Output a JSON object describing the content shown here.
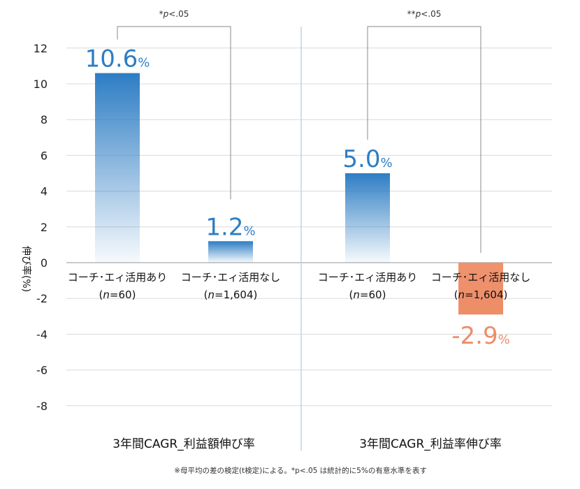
{
  "chart_data": {
    "type": "bar",
    "ylabel": "伸び率(%)",
    "ylim": [
      -9,
      13
    ],
    "yticks": [
      12,
      10,
      8,
      6,
      4,
      2,
      0,
      -2,
      -4,
      -6,
      -8
    ],
    "grid": true,
    "groups": [
      {
        "title": "3年間CAGR_利益額伸び率",
        "significance": "*p<.05",
        "significance_prefix": "*",
        "significance_p": "p",
        "significance_rest": "<.05",
        "bars": [
          {
            "label": "コーチ･エィ活用あり",
            "n_label": "(n=60)",
            "n_prefix": "(",
            "n_italic": "n",
            "n_rest": "=60)",
            "value": 10.6,
            "value_text": "10.6",
            "unit": "%",
            "color": "#2d7dc4"
          },
          {
            "label": "コーチ･エィ活用なし",
            "n_label": "(n=1,604)",
            "n_prefix": "(",
            "n_italic": "n",
            "n_rest": "=1,604)",
            "value": 1.2,
            "value_text": "1.2",
            "unit": "%",
            "color": "#2d7dc4"
          }
        ]
      },
      {
        "title": "3年間CAGR_利益率伸び率",
        "significance": "**p<.05",
        "significance_prefix": "**",
        "significance_p": "p",
        "significance_rest": "<.05",
        "bars": [
          {
            "label": "コーチ･エィ活用あり",
            "n_label": "(n=60)",
            "n_prefix": "(",
            "n_italic": "n",
            "n_rest": "=60)",
            "value": 5.0,
            "value_text": "5.0",
            "unit": "%",
            "color": "#2d7dc4"
          },
          {
            "label": "コーチ･エィ活用なし",
            "n_label": "(n=1,604)",
            "n_prefix": "(",
            "n_italic": "n",
            "n_rest": "=1,604)",
            "value": -2.9,
            "value_text": "-2.9",
            "unit": "%",
            "color": "#ee8d67"
          }
        ]
      }
    ],
    "footnote": "※母平均の差の検定(t検定)による。*p<.05 は統計的に5%の有意水準を表す"
  },
  "colors": {
    "positive": "#2d7dc4",
    "negative": "#ee8d67",
    "grid": "#d9d9d9",
    "divider": "#b8cce4",
    "bracket": "#888888"
  }
}
